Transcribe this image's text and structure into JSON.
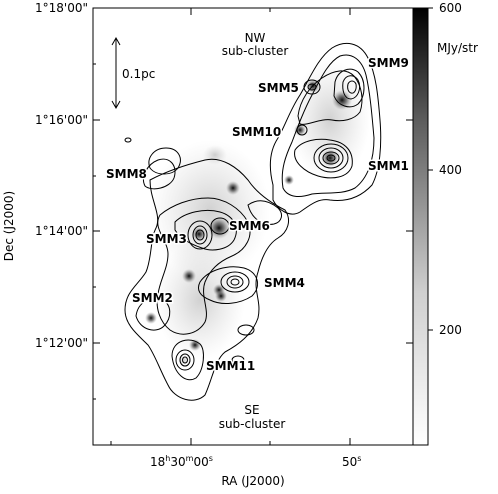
{
  "figure": {
    "xlabel": "RA (J2000)",
    "ylabel": "Dec (J2000)",
    "dec_ticks": [
      "1°18'00\"",
      "1°16'00\"",
      "1°14'00\"",
      "1°12'00\""
    ],
    "ra_ticks": {
      "main": "18",
      "h": "h",
      "val": "30",
      "m": "m",
      "s_val": "00",
      "s": "s",
      "second_val": "50",
      "second_s": "s"
    },
    "scalebar_label": "0.1pc",
    "subclusters": [
      {
        "name": "NW",
        "sub": "sub-cluster"
      },
      {
        "name": "SE",
        "sub": "sub-cluster"
      }
    ],
    "sources": [
      "SMM9",
      "SMM5",
      "SMM10",
      "SMM1",
      "SMM8",
      "SMM6",
      "SMM3",
      "SMM4",
      "SMM2",
      "SMM11"
    ]
  },
  "colorbar": {
    "unit": "MJy/str",
    "ticks": [
      "600",
      "400",
      "200"
    ],
    "range": [
      0,
      600
    ],
    "colormap": [
      "#ffffff",
      "#000000"
    ]
  }
}
